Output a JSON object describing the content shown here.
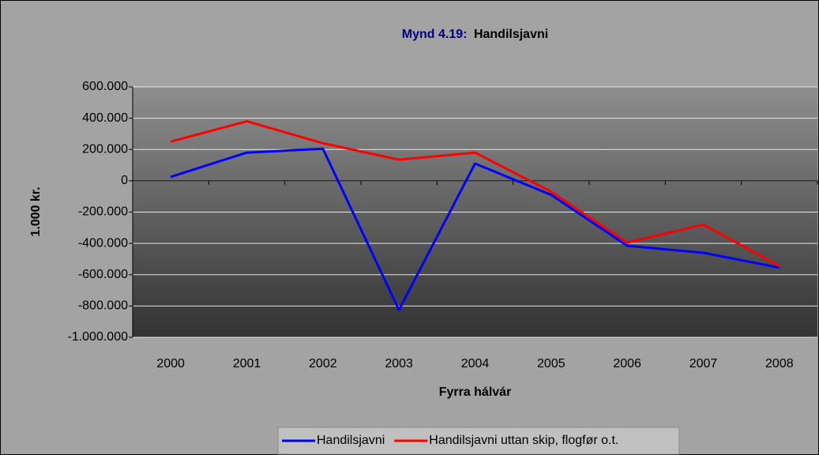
{
  "chart_data": {
    "type": "line",
    "title_label": "Mynd 4.19:",
    "title": "Handilsjavni",
    "x_label": "Fyrra hálvár",
    "y_label": "1.000 kr.",
    "categories": [
      "2000",
      "2001",
      "2002",
      "2003",
      "2004",
      "2005",
      "2006",
      "2007",
      "2008"
    ],
    "series": [
      {
        "name": "Handilsjavni",
        "color": "#0000ff",
        "values": [
          25000,
          180000,
          205000,
          -825000,
          110000,
          -90000,
          -415000,
          -460000,
          -555000
        ]
      },
      {
        "name": "Handilsjavni uttan skip, flogfør o.t.",
        "color": "#ff0000",
        "values": [
          250000,
          380000,
          240000,
          135000,
          180000,
          -70000,
          -395000,
          -280000,
          -545000
        ]
      }
    ],
    "ylim": [
      -1000000,
      600000
    ],
    "yticks": [
      {
        "value": -1000000,
        "label": "-1.000.000"
      },
      {
        "value": -800000,
        "label": "-800.000"
      },
      {
        "value": -600000,
        "label": "-600.000"
      },
      {
        "value": -400000,
        "label": "-400.000"
      },
      {
        "value": -200000,
        "label": "-200.000"
      },
      0,
      {
        "value": 200000,
        "label": "200.000"
      },
      {
        "value": 400000,
        "label": "400.000"
      },
      {
        "value": 600000,
        "label": "600.000"
      }
    ],
    "grid": true,
    "legend": "bottom"
  }
}
